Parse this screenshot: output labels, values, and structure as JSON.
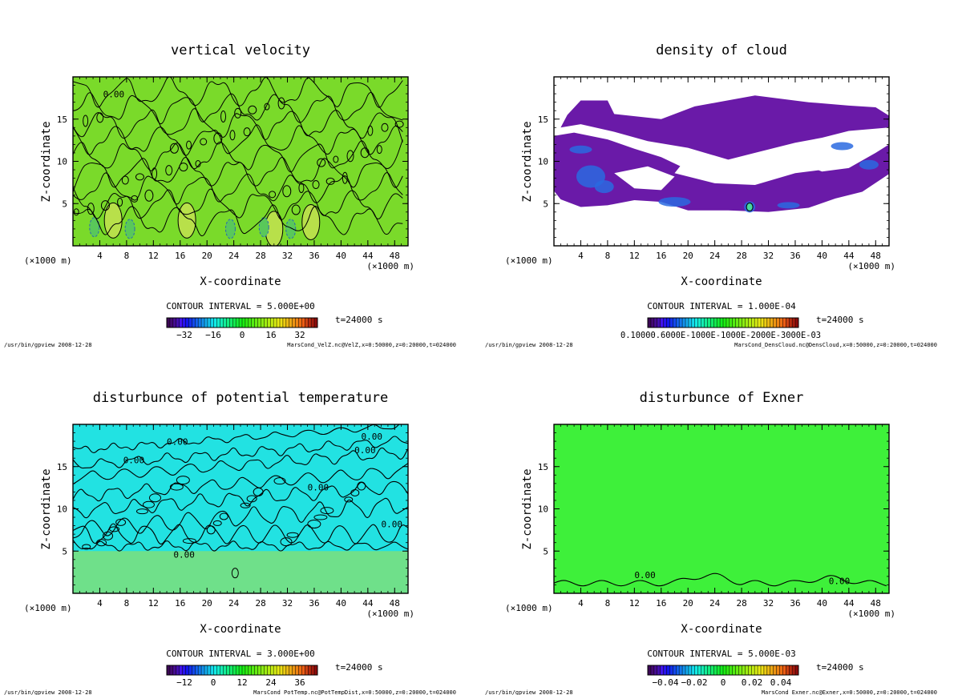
{
  "chart_data": [
    {
      "type": "heatmap",
      "title": "vertical velocity",
      "xlabel": "X-coordinate",
      "ylabel": "Z-coordinate",
      "x_unit_left": "(×1000 m)",
      "x_unit_right": "(×1000 m)",
      "xlim": [
        0,
        50
      ],
      "ylim": [
        0,
        20
      ],
      "x_ticks": [
        "4",
        "8",
        "12",
        "16",
        "20",
        "24",
        "28",
        "32",
        "36",
        "40",
        "44",
        "48"
      ],
      "y_ticks": [
        "5",
        "10",
        "15"
      ],
      "contour_interval": "CONTOUR INTERVAL = 5.000E+00",
      "time": "t=24000 s",
      "colorbar_ticks": [
        "−32",
        "−16",
        "0",
        "16",
        "32"
      ],
      "contour_labels": [
        "0.00"
      ],
      "footer_left": "/usr/bin/gpview  2008-12-28",
      "footer_right": "MarsCond_VelZ.nc@VelZ,x=0:50000,z=0:20000,t=024000",
      "colors": {
        "background": "#7ada2a",
        "colorbar": "rainbow"
      }
    },
    {
      "type": "heatmap",
      "title": "density of cloud",
      "xlabel": "X-coordinate",
      "ylabel": "Z-coordinate",
      "x_unit_left": "(×1000 m)",
      "x_unit_right": "(×1000 m)",
      "xlim": [
        0,
        50
      ],
      "ylim": [
        0,
        20
      ],
      "x_ticks": [
        "4",
        "8",
        "12",
        "16",
        "20",
        "24",
        "28",
        "32",
        "36",
        "40",
        "44",
        "48"
      ],
      "y_ticks": [
        "5",
        "10",
        "15"
      ],
      "contour_interval": "CONTOUR INTERVAL = 1.000E-04",
      "time": "t=24000 s",
      "colorbar_ticks_text": "0.10000.6000E-1000E-1000E-2000E-3000E-03",
      "footer_left": "/usr/bin/gpview  2008-12-28",
      "footer_right": "MarsCond_DensCloud.nc@DensCloud,x=0:50000,z=0:20000,t=024000",
      "colors": {
        "cloud_main": "#6a1aa8",
        "cloud_dense": "#2a6ae0",
        "colorbar": "rainbow"
      }
    },
    {
      "type": "heatmap",
      "title": "disturbunce of potential temperature",
      "xlabel": "X-coordinate",
      "ylabel": "Z-coordinate",
      "x_unit_left": "(×1000 m)",
      "x_unit_right": "(×1000 m)",
      "xlim": [
        0,
        50
      ],
      "ylim": [
        0,
        20
      ],
      "x_ticks": [
        "4",
        "8",
        "12",
        "16",
        "20",
        "24",
        "28",
        "32",
        "36",
        "40",
        "44",
        "48"
      ],
      "y_ticks": [
        "5",
        "10",
        "15"
      ],
      "contour_interval": "CONTOUR INTERVAL = 3.000E+00",
      "time": "t=24000 s",
      "colorbar_ticks": [
        "−12",
        "0",
        "12",
        "24",
        "36"
      ],
      "contour_labels": [
        "0.00"
      ],
      "footer_left": "/usr/bin/gpview  2008-12-28",
      "footer_right": "MarsCond_PotTemp.nc@PotTempDist,x=0:50000,z=0:20000,t=024000",
      "colors": {
        "upper": "#22e2e2",
        "lower": "#6fe08a",
        "colorbar": "rainbow"
      }
    },
    {
      "type": "heatmap",
      "title": "disturbunce of Exner",
      "xlabel": "X-coordinate",
      "ylabel": "Z-coordinate",
      "x_unit_left": "(×1000 m)",
      "x_unit_right": "(×1000 m)",
      "xlim": [
        0,
        50
      ],
      "ylim": [
        0,
        20
      ],
      "x_ticks": [
        "4",
        "8",
        "12",
        "16",
        "20",
        "24",
        "28",
        "32",
        "36",
        "40",
        "44",
        "48"
      ],
      "y_ticks": [
        "5",
        "10",
        "15"
      ],
      "contour_interval": "CONTOUR INTERVAL = 5.000E-03",
      "time": "t=24000 s",
      "colorbar_ticks": [
        "−0.04",
        "−0.02",
        "0",
        "0.02",
        "0.04"
      ],
      "contour_labels": [
        "0.00"
      ],
      "footer_left": "/usr/bin/gpview  2008-12-28",
      "footer_right": "MarsCond_Exner.nc@Exner,x=0:50000,z=0:20000,t=024000",
      "colors": {
        "background": "#3ef03a",
        "colorbar": "rainbow"
      }
    }
  ]
}
